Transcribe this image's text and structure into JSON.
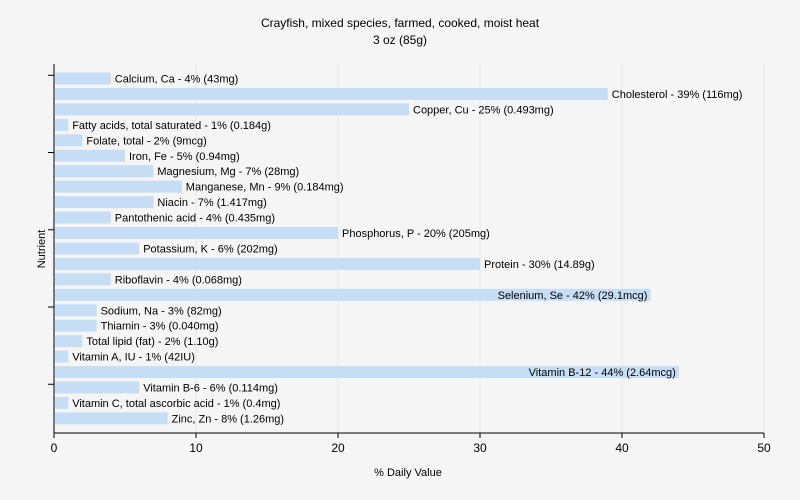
{
  "chart_data": {
    "type": "bar",
    "orientation": "horizontal",
    "title": "Crayfish, mixed species, farmed, cooked, moist heat",
    "subtitle": "3 oz (85g)",
    "xlabel": "% Daily Value",
    "ylabel": "Nutrient",
    "xlim": [
      0,
      50
    ],
    "xticks": [
      0,
      10,
      20,
      30,
      40,
      50
    ],
    "grid": true,
    "bar_color": "#c6def5",
    "grid_color": "#e6e6e6",
    "categories": [
      "Calcium, Ca - 4% (43mg)",
      "Cholesterol - 39% (116mg)",
      "Copper, Cu - 25% (0.493mg)",
      "Fatty acids, total saturated - 1% (0.184g)",
      "Folate, total - 2% (9mcg)",
      "Iron, Fe - 5% (0.94mg)",
      "Magnesium, Mg - 7% (28mg)",
      "Manganese, Mn - 9% (0.184mg)",
      "Niacin - 7% (1.417mg)",
      "Pantothenic acid - 4% (0.435mg)",
      "Phosphorus, P - 20% (205mg)",
      "Potassium, K - 6% (202mg)",
      "Protein - 30% (14.89g)",
      "Riboflavin - 4% (0.068mg)",
      "Selenium, Se - 42% (29.1mcg)",
      "Sodium, Na - 3% (82mg)",
      "Thiamin - 3% (0.040mg)",
      "Total lipid (fat) - 2% (1.10g)",
      "Vitamin A, IU - 1% (42IU)",
      "Vitamin B-12 - 44% (2.64mcg)",
      "Vitamin B-6 - 6% (0.114mg)",
      "Vitamin C, total ascorbic acid - 1% (0.4mg)",
      "Zinc, Zn - 8% (1.26mg)"
    ],
    "values": [
      4,
      39,
      25,
      1,
      2,
      5,
      7,
      9,
      7,
      4,
      20,
      6,
      30,
      4,
      42,
      3,
      3,
      2,
      1,
      44,
      6,
      1,
      8
    ]
  }
}
